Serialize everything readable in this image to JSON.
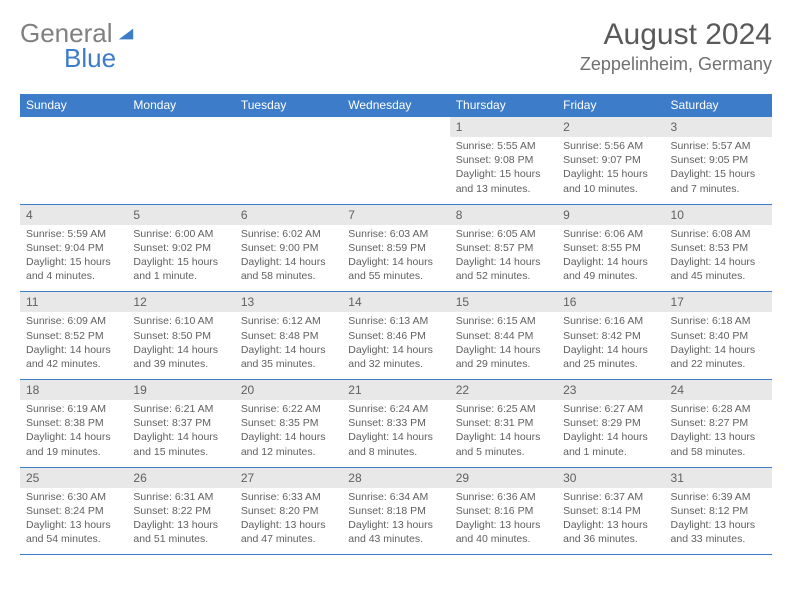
{
  "logo": {
    "general": "General",
    "blue": "Blue"
  },
  "title": "August 2024",
  "location": "Zeppelinheim, Germany",
  "dayHeaders": [
    "Sunday",
    "Monday",
    "Tuesday",
    "Wednesday",
    "Thursday",
    "Friday",
    "Saturday"
  ],
  "colors": {
    "accent": "#3d7cc9",
    "dayNumBg": "#e8e8e8",
    "text": "#606060",
    "titleText": "#5a5a5a",
    "logoGray": "#808080"
  },
  "weeks": [
    [
      null,
      null,
      null,
      null,
      {
        "num": "1",
        "sunrise": "Sunrise: 5:55 AM",
        "sunset": "Sunset: 9:08 PM",
        "daylight": "Daylight: 15 hours and 13 minutes."
      },
      {
        "num": "2",
        "sunrise": "Sunrise: 5:56 AM",
        "sunset": "Sunset: 9:07 PM",
        "daylight": "Daylight: 15 hours and 10 minutes."
      },
      {
        "num": "3",
        "sunrise": "Sunrise: 5:57 AM",
        "sunset": "Sunset: 9:05 PM",
        "daylight": "Daylight: 15 hours and 7 minutes."
      }
    ],
    [
      {
        "num": "4",
        "sunrise": "Sunrise: 5:59 AM",
        "sunset": "Sunset: 9:04 PM",
        "daylight": "Daylight: 15 hours and 4 minutes."
      },
      {
        "num": "5",
        "sunrise": "Sunrise: 6:00 AM",
        "sunset": "Sunset: 9:02 PM",
        "daylight": "Daylight: 15 hours and 1 minute."
      },
      {
        "num": "6",
        "sunrise": "Sunrise: 6:02 AM",
        "sunset": "Sunset: 9:00 PM",
        "daylight": "Daylight: 14 hours and 58 minutes."
      },
      {
        "num": "7",
        "sunrise": "Sunrise: 6:03 AM",
        "sunset": "Sunset: 8:59 PM",
        "daylight": "Daylight: 14 hours and 55 minutes."
      },
      {
        "num": "8",
        "sunrise": "Sunrise: 6:05 AM",
        "sunset": "Sunset: 8:57 PM",
        "daylight": "Daylight: 14 hours and 52 minutes."
      },
      {
        "num": "9",
        "sunrise": "Sunrise: 6:06 AM",
        "sunset": "Sunset: 8:55 PM",
        "daylight": "Daylight: 14 hours and 49 minutes."
      },
      {
        "num": "10",
        "sunrise": "Sunrise: 6:08 AM",
        "sunset": "Sunset: 8:53 PM",
        "daylight": "Daylight: 14 hours and 45 minutes."
      }
    ],
    [
      {
        "num": "11",
        "sunrise": "Sunrise: 6:09 AM",
        "sunset": "Sunset: 8:52 PM",
        "daylight": "Daylight: 14 hours and 42 minutes."
      },
      {
        "num": "12",
        "sunrise": "Sunrise: 6:10 AM",
        "sunset": "Sunset: 8:50 PM",
        "daylight": "Daylight: 14 hours and 39 minutes."
      },
      {
        "num": "13",
        "sunrise": "Sunrise: 6:12 AM",
        "sunset": "Sunset: 8:48 PM",
        "daylight": "Daylight: 14 hours and 35 minutes."
      },
      {
        "num": "14",
        "sunrise": "Sunrise: 6:13 AM",
        "sunset": "Sunset: 8:46 PM",
        "daylight": "Daylight: 14 hours and 32 minutes."
      },
      {
        "num": "15",
        "sunrise": "Sunrise: 6:15 AM",
        "sunset": "Sunset: 8:44 PM",
        "daylight": "Daylight: 14 hours and 29 minutes."
      },
      {
        "num": "16",
        "sunrise": "Sunrise: 6:16 AM",
        "sunset": "Sunset: 8:42 PM",
        "daylight": "Daylight: 14 hours and 25 minutes."
      },
      {
        "num": "17",
        "sunrise": "Sunrise: 6:18 AM",
        "sunset": "Sunset: 8:40 PM",
        "daylight": "Daylight: 14 hours and 22 minutes."
      }
    ],
    [
      {
        "num": "18",
        "sunrise": "Sunrise: 6:19 AM",
        "sunset": "Sunset: 8:38 PM",
        "daylight": "Daylight: 14 hours and 19 minutes."
      },
      {
        "num": "19",
        "sunrise": "Sunrise: 6:21 AM",
        "sunset": "Sunset: 8:37 PM",
        "daylight": "Daylight: 14 hours and 15 minutes."
      },
      {
        "num": "20",
        "sunrise": "Sunrise: 6:22 AM",
        "sunset": "Sunset: 8:35 PM",
        "daylight": "Daylight: 14 hours and 12 minutes."
      },
      {
        "num": "21",
        "sunrise": "Sunrise: 6:24 AM",
        "sunset": "Sunset: 8:33 PM",
        "daylight": "Daylight: 14 hours and 8 minutes."
      },
      {
        "num": "22",
        "sunrise": "Sunrise: 6:25 AM",
        "sunset": "Sunset: 8:31 PM",
        "daylight": "Daylight: 14 hours and 5 minutes."
      },
      {
        "num": "23",
        "sunrise": "Sunrise: 6:27 AM",
        "sunset": "Sunset: 8:29 PM",
        "daylight": "Daylight: 14 hours and 1 minute."
      },
      {
        "num": "24",
        "sunrise": "Sunrise: 6:28 AM",
        "sunset": "Sunset: 8:27 PM",
        "daylight": "Daylight: 13 hours and 58 minutes."
      }
    ],
    [
      {
        "num": "25",
        "sunrise": "Sunrise: 6:30 AM",
        "sunset": "Sunset: 8:24 PM",
        "daylight": "Daylight: 13 hours and 54 minutes."
      },
      {
        "num": "26",
        "sunrise": "Sunrise: 6:31 AM",
        "sunset": "Sunset: 8:22 PM",
        "daylight": "Daylight: 13 hours and 51 minutes."
      },
      {
        "num": "27",
        "sunrise": "Sunrise: 6:33 AM",
        "sunset": "Sunset: 8:20 PM",
        "daylight": "Daylight: 13 hours and 47 minutes."
      },
      {
        "num": "28",
        "sunrise": "Sunrise: 6:34 AM",
        "sunset": "Sunset: 8:18 PM",
        "daylight": "Daylight: 13 hours and 43 minutes."
      },
      {
        "num": "29",
        "sunrise": "Sunrise: 6:36 AM",
        "sunset": "Sunset: 8:16 PM",
        "daylight": "Daylight: 13 hours and 40 minutes."
      },
      {
        "num": "30",
        "sunrise": "Sunrise: 6:37 AM",
        "sunset": "Sunset: 8:14 PM",
        "daylight": "Daylight: 13 hours and 36 minutes."
      },
      {
        "num": "31",
        "sunrise": "Sunrise: 6:39 AM",
        "sunset": "Sunset: 8:12 PM",
        "daylight": "Daylight: 13 hours and 33 minutes."
      }
    ]
  ]
}
